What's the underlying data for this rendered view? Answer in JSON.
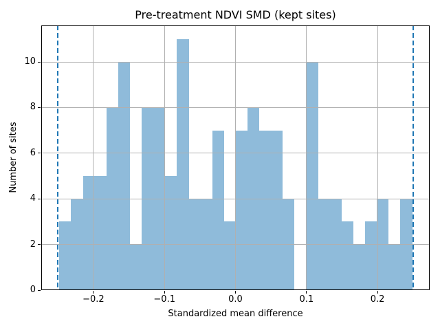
{
  "chart_data": {
    "type": "bar",
    "subtype": "histogram",
    "title": "Pre-treatment NDVI SMD (kept sites)",
    "xlabel": "Standardized mean difference",
    "ylabel": "Number of sites",
    "bins": {
      "start": -0.248,
      "width": 0.016563,
      "counts": [
        3,
        4,
        5,
        5,
        8,
        10,
        2,
        8,
        8,
        5,
        11,
        4,
        4,
        7,
        3,
        7,
        8,
        7,
        7,
        4,
        0,
        10,
        4,
        4,
        3,
        2,
        3,
        4,
        2,
        4
      ]
    },
    "caliper_lines": [
      -0.25,
      0.25
    ],
    "caliper_line_style": "dashed",
    "xlim": [
      -0.2735,
      0.2735
    ],
    "ylim": [
      0,
      11.6
    ],
    "xticks": [
      -0.2,
      -0.1,
      0.0,
      0.1,
      0.2
    ],
    "xtick_labels": [
      "−0.2",
      "−0.1",
      "0.0",
      "0.1",
      "0.2"
    ],
    "yticks": [
      0,
      2,
      4,
      6,
      8,
      10
    ],
    "ytick_labels": [
      "0",
      "2",
      "4",
      "6",
      "8",
      "10"
    ],
    "grid": true,
    "legend": null,
    "colors": {
      "bar": "#8fbbda",
      "caliper_line": "#1f77b4",
      "grid": "#b0b0b0",
      "spine": "#000000",
      "text": "#000000",
      "background": "#ffffff"
    }
  }
}
